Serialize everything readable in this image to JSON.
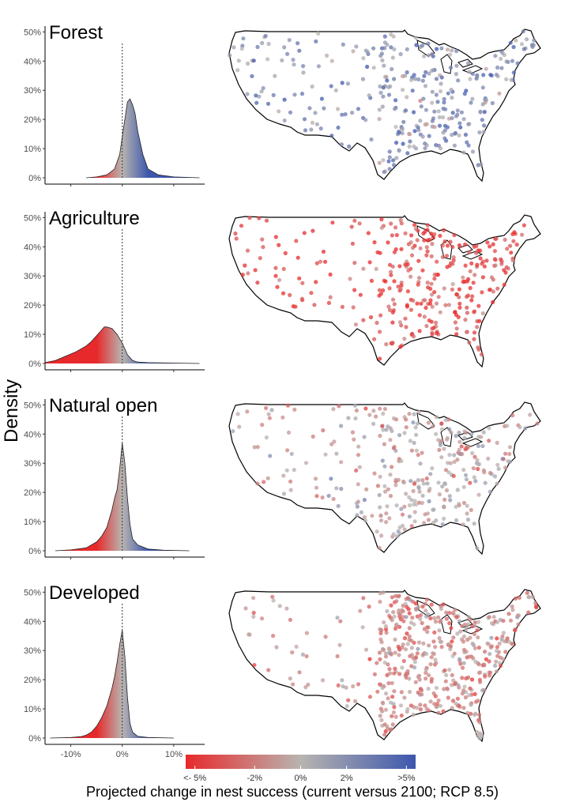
{
  "ylabel": "Density",
  "colors": {
    "negative": "#e8292b",
    "neutral": "#b8b4b0",
    "positive": "#3d57ad"
  },
  "chart_data": [
    {
      "type": "area",
      "title": "Forest",
      "x_ticks": [
        "-10%",
        "0%",
        "10%"
      ],
      "y_ticks": [
        "0%",
        "10%",
        "20%",
        "30%",
        "40%",
        "50%"
      ],
      "xlim": [
        -15,
        16
      ],
      "ylim": [
        0,
        52
      ],
      "reference_x": 0,
      "x": [
        -7,
        -5,
        -3,
        -1.5,
        -0.5,
        0,
        0.5,
        1,
        1.5,
        2,
        2.5,
        3,
        4,
        5,
        7,
        10,
        15
      ],
      "y": [
        0,
        0.3,
        1,
        3,
        8,
        14,
        20,
        26,
        27,
        25,
        22,
        16,
        8,
        3,
        1,
        0.3,
        0
      ]
    },
    {
      "type": "area",
      "title": "Agriculture",
      "x_ticks": [
        "-10%",
        "0%",
        "10%"
      ],
      "y_ticks": [
        "0%",
        "10%",
        "20%",
        "30%",
        "40%",
        "50%"
      ],
      "xlim": [
        -15,
        16
      ],
      "ylim": [
        0,
        52
      ],
      "reference_x": 0,
      "x": [
        -15,
        -13,
        -11,
        -9,
        -7,
        -6,
        -5,
        -4,
        -3.5,
        -3,
        -2,
        -1,
        0,
        1,
        2,
        3,
        5,
        8,
        15
      ],
      "y": [
        0.3,
        1,
        2.5,
        4,
        6,
        7.5,
        9.5,
        11.5,
        12.5,
        12.5,
        12,
        10,
        7,
        3,
        1,
        0.5,
        0.3,
        0.2,
        0
      ]
    },
    {
      "type": "area",
      "title": "Natural open",
      "x_ticks": [
        "-10%",
        "0%",
        "10%"
      ],
      "y_ticks": [
        "0%",
        "10%",
        "20%",
        "30%",
        "40%",
        "50%"
      ],
      "xlim": [
        -15,
        16
      ],
      "ylim": [
        0,
        52
      ],
      "reference_x": 0,
      "x": [
        -13,
        -10,
        -7,
        -5,
        -4,
        -3,
        -2,
        -1.5,
        -1,
        -0.5,
        0,
        0.5,
        1,
        1.5,
        2,
        3,
        5,
        8,
        13
      ],
      "y": [
        0,
        0.3,
        1,
        3,
        5,
        8,
        14,
        18,
        21,
        28,
        37,
        30,
        18,
        9,
        4,
        2,
        0.6,
        0.2,
        0
      ]
    },
    {
      "type": "area",
      "title": "Developed",
      "x_ticks": [
        "-10%",
        "0%",
        "10%"
      ],
      "y_ticks": [
        "0%",
        "10%",
        "20%",
        "30%",
        "40%",
        "50%"
      ],
      "xlim": [
        -15,
        16
      ],
      "ylim": [
        0,
        52
      ],
      "reference_x": 0,
      "x": [
        -14,
        -10,
        -8,
        -7,
        -6,
        -5,
        -4,
        -3,
        -2,
        -1.5,
        -1,
        -0.5,
        0,
        0.5,
        1,
        1.5,
        2,
        3,
        5,
        10
      ],
      "y": [
        0,
        0.2,
        0.5,
        1,
        2,
        4,
        7,
        11,
        17,
        21,
        26,
        32,
        37,
        28,
        14,
        5,
        2,
        0.6,
        0.2,
        0
      ]
    },
    {
      "type": "scatter",
      "title": "",
      "description_note": "",
      "panels": [
        "Forest",
        "Agriculture",
        "Natural open",
        "Developed"
      ]
    }
  ],
  "legend": {
    "ticks": [
      "<- 5%",
      "-2%",
      "0%",
      "2%",
      ">5%"
    ],
    "title": "Projected change in nest success (current versus 2100; RCP 8.5)"
  }
}
